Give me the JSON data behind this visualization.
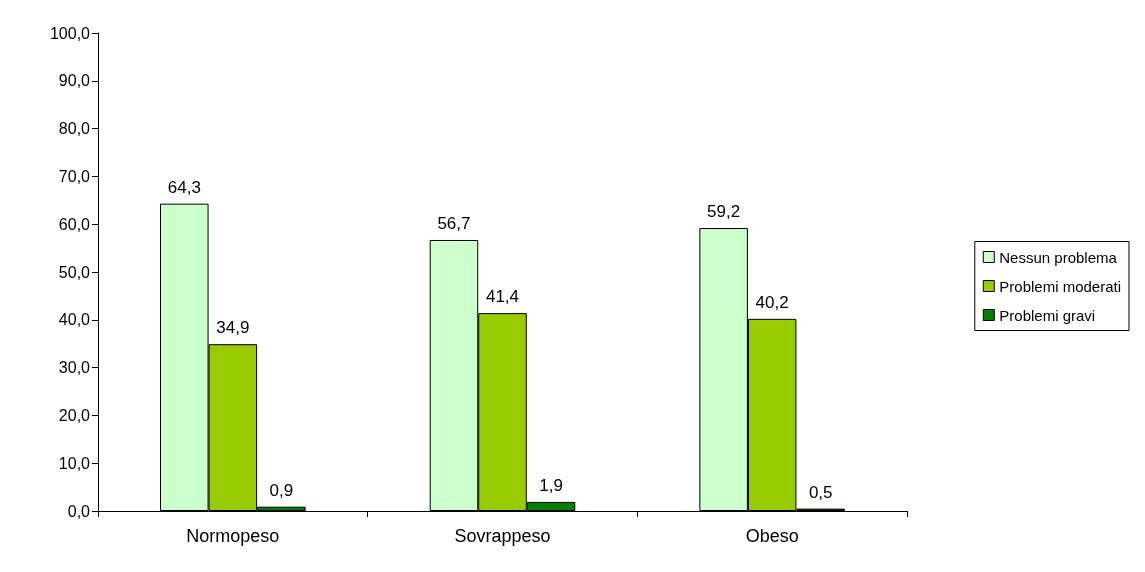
{
  "chart_data": {
    "type": "bar",
    "categories": [
      "Normopeso",
      "Sovrappeso",
      "Obeso"
    ],
    "series": [
      {
        "name": "Nessun problema",
        "color": "#ccffcc",
        "values": [
          64.3,
          56.7,
          59.2
        ],
        "value_labels": [
          "64,3",
          "56,7",
          "59,2"
        ]
      },
      {
        "name": "Problemi moderati",
        "color": "#99cc00",
        "values": [
          34.9,
          41.4,
          40.2
        ],
        "value_labels": [
          "34,9",
          "41,4",
          "40,2"
        ]
      },
      {
        "name": "Problemi gravi",
        "color": "#008000",
        "values": [
          0.9,
          1.9,
          0.5
        ],
        "value_labels": [
          "0,9",
          "1,9",
          "0,5"
        ]
      }
    ],
    "ylim": [
      0,
      100
    ],
    "yticks": [
      {
        "value": 0,
        "label": "0,0"
      },
      {
        "value": 10,
        "label": "10,0"
      },
      {
        "value": 20,
        "label": "20,0"
      },
      {
        "value": 30,
        "label": "30,0"
      },
      {
        "value": 40,
        "label": "40,0"
      },
      {
        "value": 50,
        "label": "50,0"
      },
      {
        "value": 60,
        "label": "60,0"
      },
      {
        "value": 70,
        "label": "70,0"
      },
      {
        "value": 80,
        "label": "80,0"
      },
      {
        "value": 90,
        "label": "90,0"
      },
      {
        "value": 100,
        "label": "100,0"
      }
    ],
    "grid": false,
    "legend": "right"
  }
}
